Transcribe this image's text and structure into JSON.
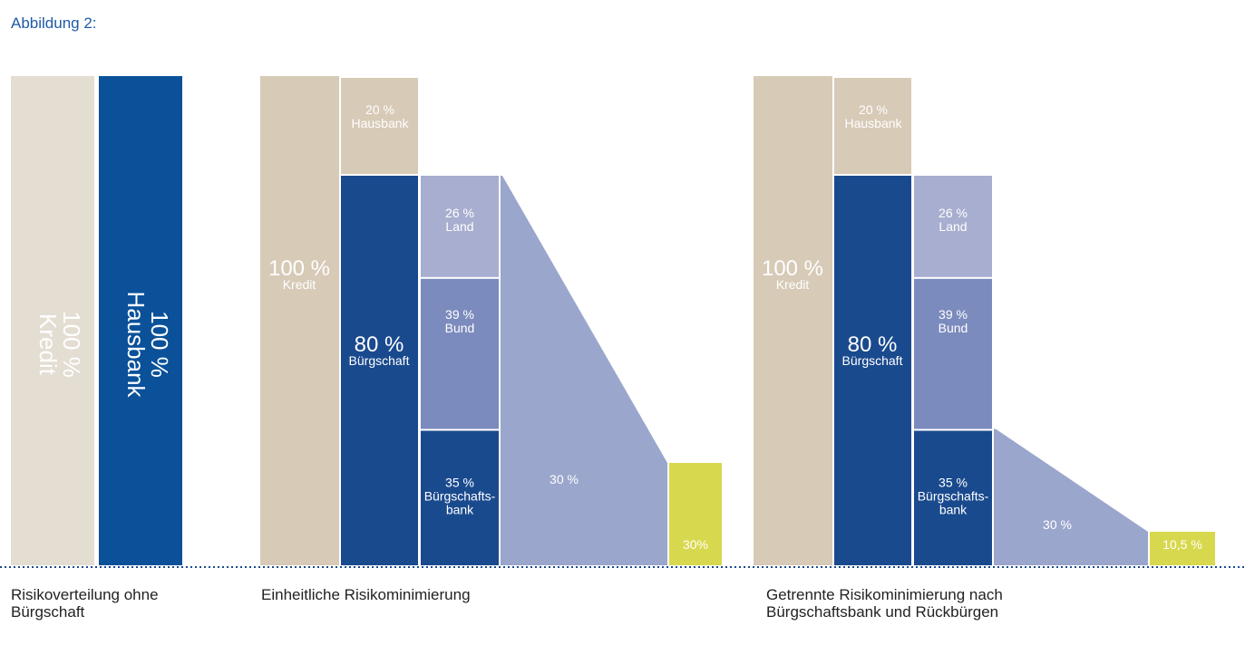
{
  "figure_title": "Abbildung 2:",
  "colors": {
    "beige_light": "#e4ddd2",
    "beige": "#d7cab7",
    "blue_hausbank": "#0a5199",
    "blue_dark": "#1a4a8e",
    "lavender_light": "#a8aecf",
    "lavender_mid": "#7c8bbd",
    "trapezoid": "#9aa6cc",
    "green": "#d8d84e",
    "white_text": "#ffffff",
    "baseline": "#1a4a8e"
  },
  "chart_data": [
    {
      "type": "bar",
      "caption": [
        "Risikoverteilung ohne",
        "Bürgschaft"
      ],
      "bars": [
        {
          "value": 100,
          "label_lines": [
            "100 %",
            "Kredit"
          ]
        },
        {
          "value": 100,
          "label_lines": [
            "100 %",
            "Hausbank"
          ]
        }
      ]
    },
    {
      "type": "bar",
      "caption": [
        "Einheitliche Risikominimierung"
      ],
      "kredit": {
        "value": 100,
        "label_lines": [
          "100 %",
          "Kredit"
        ]
      },
      "hausbank": {
        "value": 20,
        "label_lines": [
          "20 %",
          "Hausbank"
        ]
      },
      "buergschaft": {
        "value": 80,
        "label_lines": [
          "80 %",
          "Bürgschaft"
        ]
      },
      "segments": [
        {
          "value": 26,
          "label_lines": [
            "26 %",
            "Land"
          ]
        },
        {
          "value": 39,
          "label_lines": [
            "39 %",
            "Bund"
          ]
        },
        {
          "value": 35,
          "label_lines": [
            "35 %",
            "Bürgschafts-",
            "bank"
          ]
        }
      ],
      "reduction_label": "30 %",
      "result": {
        "label": "30%"
      }
    },
    {
      "type": "bar",
      "caption": [
        "Getrennte Risikominimierung nach",
        "Bürgschaftsbank und Rückbürgen"
      ],
      "kredit": {
        "value": 100,
        "label_lines": [
          "100 %",
          "Kredit"
        ]
      },
      "hausbank": {
        "value": 20,
        "label_lines": [
          "20 %",
          "Hausbank"
        ]
      },
      "buergschaft": {
        "value": 80,
        "label_lines": [
          "80 %",
          "Bürgschaft"
        ]
      },
      "segments": [
        {
          "value": 26,
          "label_lines": [
            "26 %",
            "Land"
          ]
        },
        {
          "value": 39,
          "label_lines": [
            "39 %",
            "Bund"
          ]
        },
        {
          "value": 35,
          "label_lines": [
            "35 %",
            "Bürgschafts-",
            "bank"
          ]
        }
      ],
      "reduction_label": "30 %",
      "result": {
        "label": "10,5 %"
      }
    }
  ]
}
